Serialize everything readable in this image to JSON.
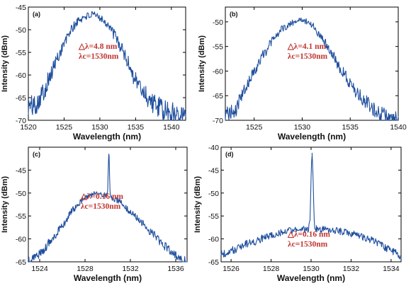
{
  "figure": {
    "accent_color": "#1f4f9e",
    "annotation_color": "#c0342f"
  },
  "chart_data": [
    {
      "type": "line",
      "panel": "(a)",
      "xlabel": "Wavelength (nm)",
      "ylabel": "Intensity (dBm)",
      "xlim": [
        1520,
        1542
      ],
      "ylim": [
        -70,
        -45
      ],
      "xticks": [
        1520,
        1525,
        1530,
        1535,
        1540
      ],
      "yticks": [
        -70,
        -65,
        -60,
        -55,
        -50,
        -45
      ],
      "annotations": [
        "△λ=4.8 nm",
        "λc=1530nm"
      ],
      "series": [
        {
          "x": [
            1520,
            1521,
            1522,
            1523,
            1524,
            1525,
            1526,
            1527,
            1528,
            1529,
            1530,
            1531,
            1532,
            1533,
            1534,
            1535,
            1536,
            1537,
            1538,
            1539,
            1540,
            1541,
            1542
          ],
          "values": [
            -67,
            -66.5,
            -64,
            -60.5,
            -56.5,
            -53,
            -50,
            -48,
            -47,
            -46.8,
            -47.2,
            -48.6,
            -51,
            -54,
            -57.5,
            -61,
            -63.5,
            -65.5,
            -67,
            -68,
            -68.5,
            -68,
            -69
          ],
          "noise": 1.4
        }
      ]
    },
    {
      "type": "line",
      "panel": "(b)",
      "xlabel": "Wavelength (nm)",
      "ylabel": "Intensity (dBm)",
      "xlim": [
        1522,
        1540
      ],
      "ylim": [
        -70,
        -47
      ],
      "xticks": [
        1525,
        1530,
        1535,
        1540
      ],
      "yticks": [
        -70,
        -65,
        -60,
        -55,
        -50
      ],
      "annotations": [
        "△λ=4.1 nm",
        "λc=1530nm"
      ],
      "series": [
        {
          "x": [
            1522,
            1523,
            1524,
            1525,
            1526,
            1527,
            1528,
            1529,
            1530,
            1531,
            1532,
            1533,
            1534,
            1535,
            1536,
            1537,
            1538,
            1539,
            1540
          ],
          "values": [
            -69,
            -68,
            -64,
            -60,
            -56.5,
            -53.5,
            -51.3,
            -50.2,
            -49.5,
            -50.6,
            -53,
            -56,
            -59.5,
            -62.5,
            -65,
            -67,
            -68.5,
            -69.5,
            -70
          ],
          "noise": 0.9
        }
      ]
    },
    {
      "type": "line",
      "panel": "(c)",
      "xlabel": "Wavelength (nm)",
      "ylabel": "Intensity (dBm)",
      "xlim": [
        1523,
        1537
      ],
      "ylim": [
        -65,
        -40
      ],
      "xticks": [
        1524,
        1528,
        1532,
        1536
      ],
      "yticks": [
        -65,
        -60,
        -55,
        -50,
        -45
      ],
      "annotations": [
        "△λ=0.16 nm",
        "λc=1530nm"
      ],
      "series": [
        {
          "x": [
            1523,
            1524,
            1525,
            1526,
            1527,
            1528,
            1529,
            1530,
            1531,
            1532,
            1533,
            1534,
            1535,
            1536,
            1537
          ],
          "values": [
            -65,
            -63.2,
            -60.5,
            -57,
            -53.5,
            -51,
            -50,
            -50.6,
            -51.8,
            -54,
            -56.5,
            -59,
            -61.5,
            -63.5,
            -65
          ],
          "noise": 0.55,
          "peak": {
            "x": 1530.1,
            "y": -41.5,
            "fwhm": 0.16
          }
        }
      ]
    },
    {
      "type": "line",
      "panel": "(d)",
      "xlabel": "Wavelength (nm)",
      "ylabel": "Intensity (dBm)",
      "xlim": [
        1525.5,
        1534.5
      ],
      "ylim": [
        -65,
        -40
      ],
      "xticks": [
        1526,
        1528,
        1530,
        1532,
        1534
      ],
      "yticks": [
        -65,
        -60,
        -55,
        -50,
        -45,
        -40
      ],
      "annotations": [
        "△λ=0.16 nm",
        "λc=1530nm"
      ],
      "series": [
        {
          "x": [
            1525.5,
            1526,
            1527,
            1528,
            1529,
            1530,
            1531,
            1532,
            1533,
            1534,
            1534.5
          ],
          "values": [
            -63.5,
            -62.5,
            -60.8,
            -59.2,
            -58.2,
            -57.8,
            -58,
            -58.8,
            -60.2,
            -62.5,
            -64
          ],
          "noise": 0.5,
          "peak": {
            "x": 1530.05,
            "y": -41.3,
            "fwhm": 0.16
          }
        }
      ]
    }
  ]
}
